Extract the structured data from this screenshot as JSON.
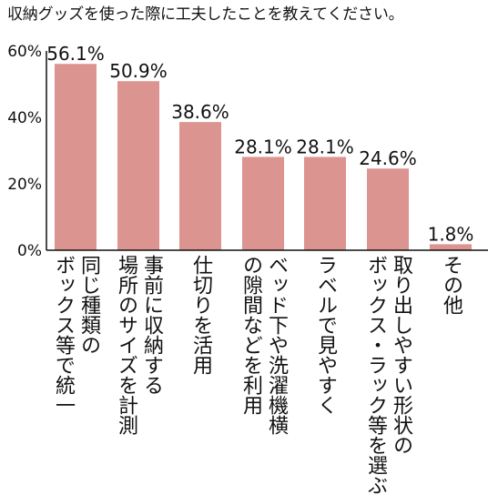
{
  "chart_data": {
    "type": "bar",
    "title": "収納グッズを使った際に工夫したことを教えてください。",
    "categories": [
      "同じ種類の\nボックス等で統一",
      "事前に収納する\n場所のサイズを計測",
      "仕切りを活用",
      "ベッド下や洗濯機横\nの隙間などを利用",
      "ラベルで見やすく",
      "取り出しやすい形状の\nボックス・ラック等を選ぶ",
      "その他"
    ],
    "values": [
      56.1,
      50.9,
      38.6,
      28.1,
      28.1,
      24.6,
      1.8
    ],
    "value_labels": [
      "56.1%",
      "50.9%",
      "38.6%",
      "28.1%",
      "28.1%",
      "24.6%",
      "1.8%"
    ],
    "yticks": [
      "0%",
      "20%",
      "40%",
      "60%"
    ],
    "ylim": [
      0,
      60
    ],
    "bar_color": "#dc9490",
    "grid": false,
    "legend": "none"
  }
}
